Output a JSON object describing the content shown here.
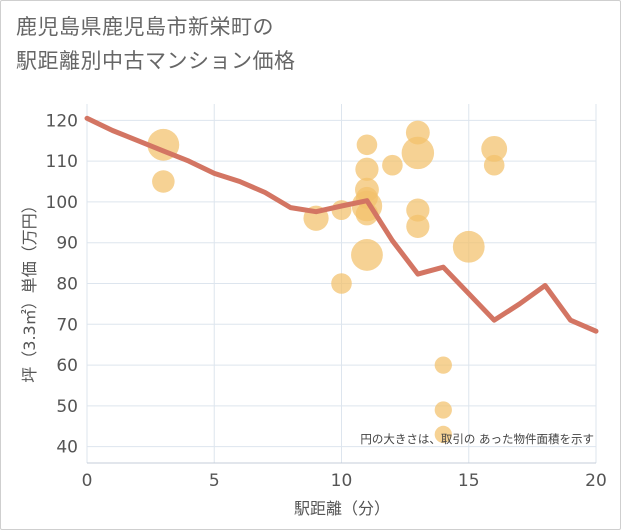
{
  "title_line1": "鹿児島県鹿児島市新栄町の",
  "title_line2": "駅距離別中古マンション価格",
  "chart_data": {
    "type": "scatter",
    "xlabel": "駅距離（分）",
    "ylabel": "坪（3.3㎡）単価（万円）",
    "xlim": [
      0,
      20
    ],
    "ylim": [
      36,
      124
    ],
    "xticks": [
      0,
      5,
      10,
      15,
      20
    ],
    "yticks": [
      40,
      50,
      60,
      70,
      80,
      90,
      100,
      110,
      120
    ],
    "grid": true,
    "note": "円の大きさは、取引の あった物件面積を示す",
    "bubble_color": "#f2c06b",
    "line_color": "#d37563",
    "points": [
      {
        "x": 3,
        "y": 114,
        "s": 3
      },
      {
        "x": 3,
        "y": 105,
        "s": 1.6
      },
      {
        "x": 9,
        "y": 96,
        "s": 2
      },
      {
        "x": 10,
        "y": 98,
        "s": 1.2
      },
      {
        "x": 10,
        "y": 80,
        "s": 1.3
      },
      {
        "x": 11,
        "y": 114,
        "s": 1.3
      },
      {
        "x": 11,
        "y": 108,
        "s": 1.7
      },
      {
        "x": 11,
        "y": 103,
        "s": 1.8
      },
      {
        "x": 11,
        "y": 101,
        "s": 1.5
      },
      {
        "x": 11,
        "y": 99,
        "s": 2.8
      },
      {
        "x": 11,
        "y": 97,
        "s": 1.6
      },
      {
        "x": 11,
        "y": 87,
        "s": 3
      },
      {
        "x": 12,
        "y": 109,
        "s": 1.3
      },
      {
        "x": 13,
        "y": 117,
        "s": 1.8
      },
      {
        "x": 13,
        "y": 112,
        "s": 3.1
      },
      {
        "x": 13,
        "y": 98,
        "s": 1.7
      },
      {
        "x": 13,
        "y": 94,
        "s": 1.7
      },
      {
        "x": 14,
        "y": 60,
        "s": 0.8
      },
      {
        "x": 14,
        "y": 49,
        "s": 0.8
      },
      {
        "x": 14,
        "y": 43,
        "s": 0.8
      },
      {
        "x": 15,
        "y": 89,
        "s": 3
      },
      {
        "x": 16,
        "y": 113,
        "s": 2.1
      },
      {
        "x": 16,
        "y": 109,
        "s": 1.3
      }
    ],
    "line": {
      "x": [
        0,
        1,
        2,
        3,
        4,
        5,
        6,
        7,
        8,
        9,
        10,
        11,
        12,
        13,
        14,
        15,
        16,
        17,
        18,
        19,
        20
      ],
      "y": [
        120.5,
        117.5,
        115,
        112.5,
        110,
        107,
        105,
        102.3,
        98.6,
        97.6,
        99,
        100.3,
        90.5,
        82.3,
        84,
        77.5,
        71,
        75,
        79.5,
        71,
        68.3
      ]
    }
  }
}
